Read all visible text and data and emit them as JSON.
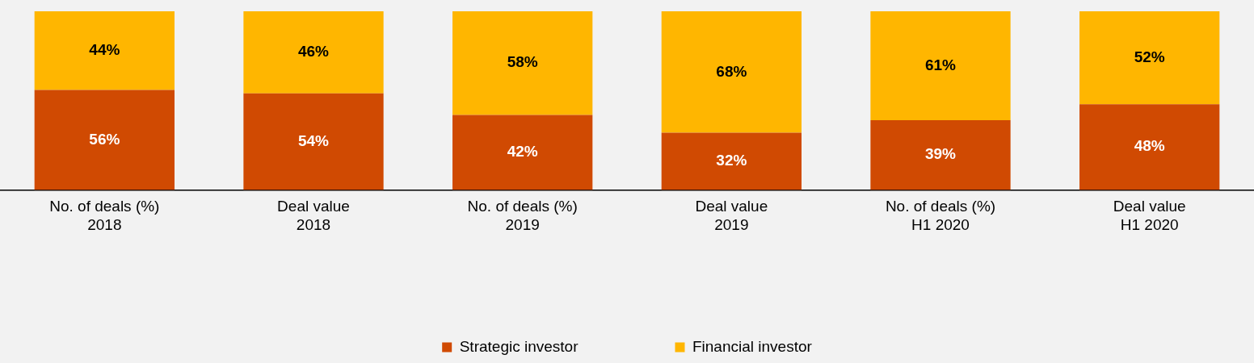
{
  "chart_data": {
    "type": "bar",
    "stacked": true,
    "categories": [
      "No. of deals (%)\n2018",
      "Deal value\n2018",
      "No. of deals (%)\n2019",
      "Deal value\n2019",
      "No. of deals (%)\nH1 2020",
      "Deal value\nH1 2020"
    ],
    "series": [
      {
        "name": "Strategic investor",
        "color": "#d04a02",
        "values": [
          56,
          54,
          42,
          32,
          39,
          48
        ],
        "value_labels": [
          "56%",
          "54%",
          "42%",
          "32%",
          "39%",
          "48%"
        ]
      },
      {
        "name": "Financial investor",
        "color": "#ffb600",
        "values": [
          44,
          46,
          58,
          68,
          61,
          52
        ],
        "value_labels": [
          "44%",
          "46%",
          "58%",
          "68%",
          "61%",
          "52%"
        ]
      }
    ],
    "ylim": [
      0,
      100
    ],
    "tick_labels": "x",
    "grid": false,
    "legend": "bottom"
  }
}
